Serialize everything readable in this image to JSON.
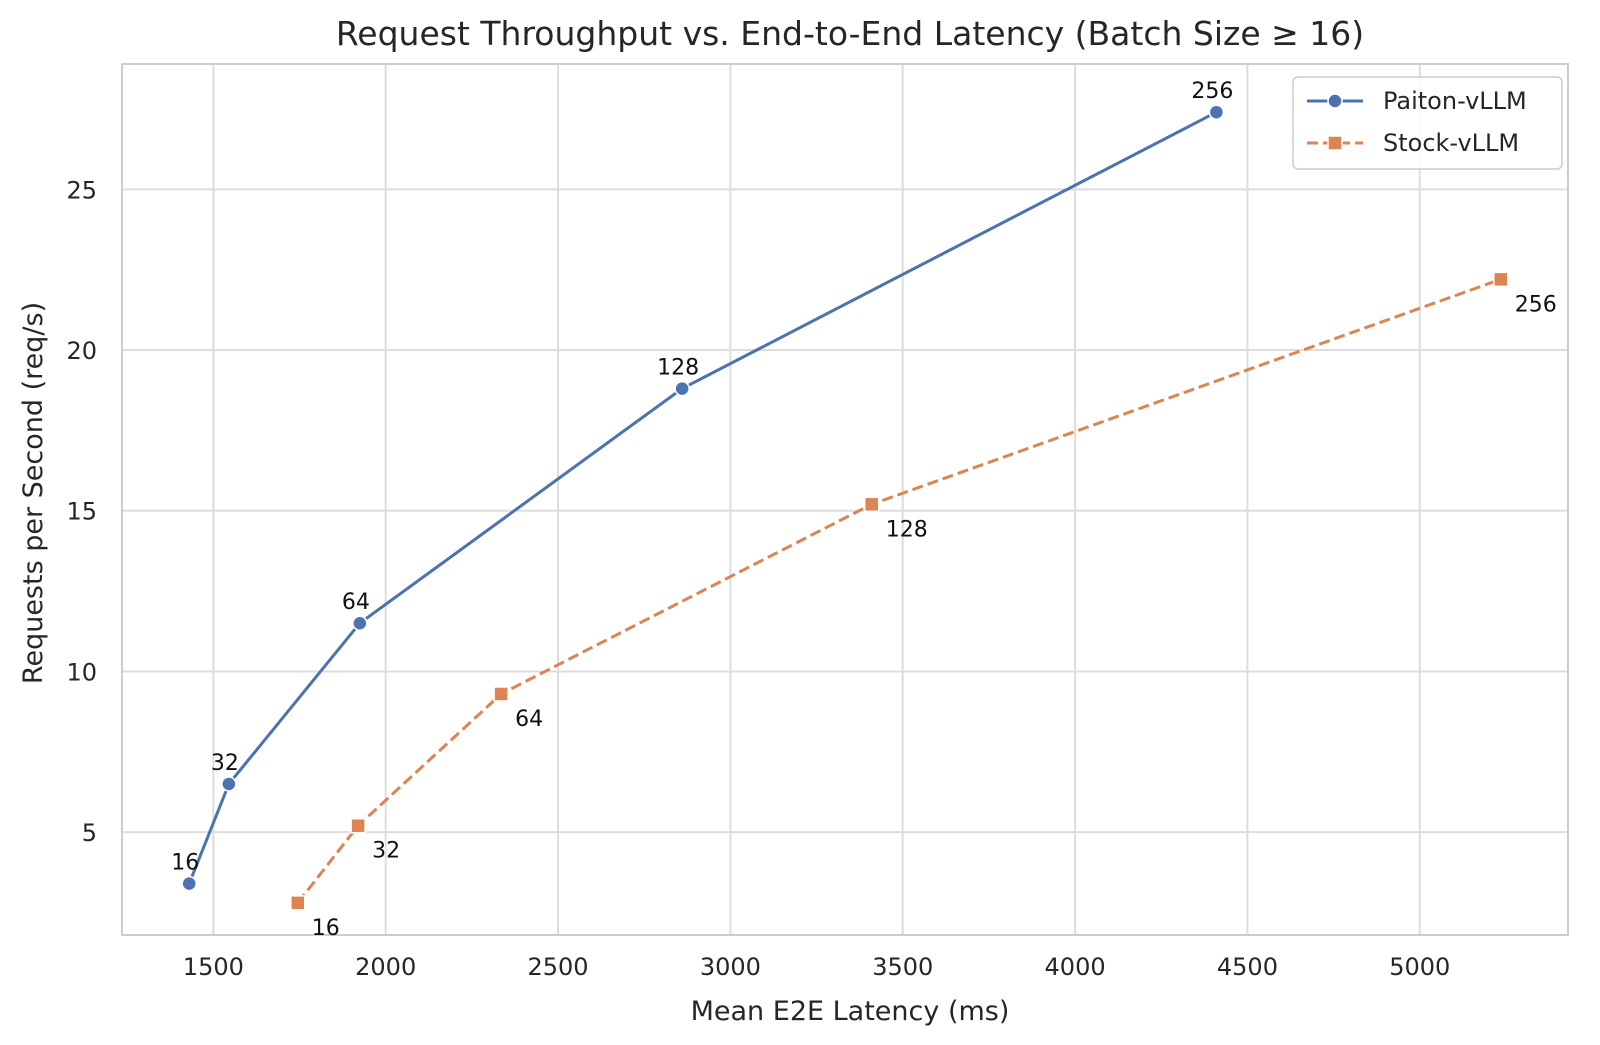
{
  "chart_data": {
    "type": "line",
    "title": "Request Throughput vs. End-to-End Latency (Batch Size ≥ 16)",
    "xlabel": "Mean E2E Latency (ms)",
    "ylabel": "Requests per Second (req/s)",
    "xlim": [
      1235,
      5430
    ],
    "ylim": [
      1.8,
      28.9
    ],
    "xticks": [
      1500,
      2000,
      2500,
      3000,
      3500,
      4000,
      4500,
      5000
    ],
    "yticks": [
      5,
      10,
      15,
      20,
      25
    ],
    "grid": true,
    "legend_position": "top-right",
    "series": [
      {
        "name": "Paiton-vLLM",
        "color": "#4c72b0",
        "marker": "circle",
        "line_style": "solid",
        "points": [
          {
            "x": 1430,
            "y": 3.4,
            "label": "16"
          },
          {
            "x": 1545,
            "y": 6.5,
            "label": "32"
          },
          {
            "x": 1925,
            "y": 11.5,
            "label": "64"
          },
          {
            "x": 2860,
            "y": 18.8,
            "label": "128"
          },
          {
            "x": 4410,
            "y": 27.4,
            "label": "256"
          }
        ]
      },
      {
        "name": "Stock-vLLM",
        "color": "#dd8452",
        "marker": "square",
        "line_style": "dashed",
        "points": [
          {
            "x": 1745,
            "y": 2.8,
            "label": "16"
          },
          {
            "x": 1920,
            "y": 5.2,
            "label": "32"
          },
          {
            "x": 2335,
            "y": 9.3,
            "label": "64"
          },
          {
            "x": 3410,
            "y": 15.2,
            "label": "128"
          },
          {
            "x": 5235,
            "y": 22.2,
            "label": "256"
          }
        ]
      }
    ]
  }
}
